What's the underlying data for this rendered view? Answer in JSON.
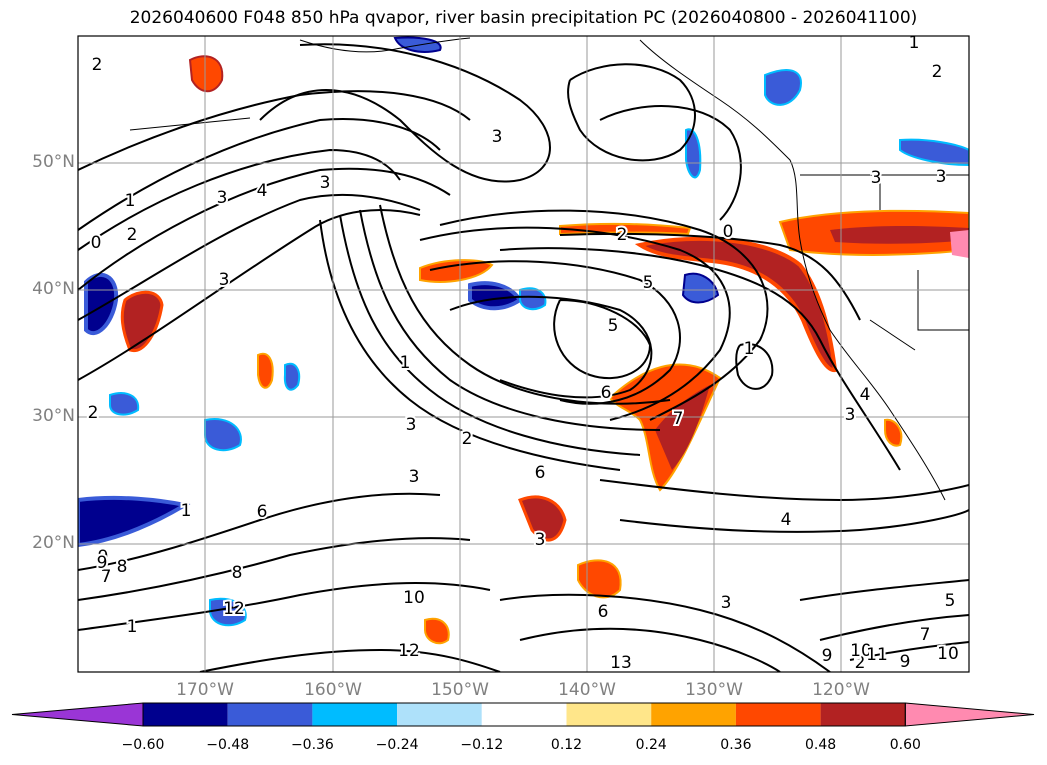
{
  "title": "2026040600 F048 850 hPa qvapor, river basin precipitation PC (2026040800 - 2026041100)",
  "lat_labels": [
    "50°N",
    "40°N",
    "30°N",
    "20°N"
  ],
  "lon_labels": [
    "170°W",
    "160°W",
    "150°W",
    "140°W",
    "130°W",
    "120°W"
  ],
  "colorbar": {
    "colors": [
      "#9a35d6",
      "#00008e",
      "#3a5bd8",
      "#00bcff",
      "#aee1fa",
      "#ffffff",
      "#ffe68a",
      "#ffa300",
      "#ff4800",
      "#b22222",
      "#ff8ab0"
    ],
    "ticks": [
      "−0.60",
      "−0.48",
      "−0.36",
      "−0.24",
      "−0.12",
      "0.12",
      "0.24",
      "0.36",
      "0.48",
      "0.60"
    ]
  },
  "contour_labels": [
    "2",
    "3",
    "4",
    "3",
    "1",
    "0",
    "2",
    "3",
    "3",
    "2",
    "7",
    "8",
    "9",
    "1",
    "6",
    "12",
    "8",
    "1",
    "1",
    "4",
    "2",
    "5",
    "6",
    "7",
    "3",
    "6",
    "5",
    "2",
    "3",
    "3",
    "10",
    "12",
    "13",
    "6",
    "9",
    "3",
    "5",
    "4",
    "3",
    "1",
    "0",
    "2",
    "3",
    "1",
    "2",
    "3",
    "2",
    "9",
    "10",
    "11",
    "9",
    "10",
    "5",
    "7"
  ]
}
